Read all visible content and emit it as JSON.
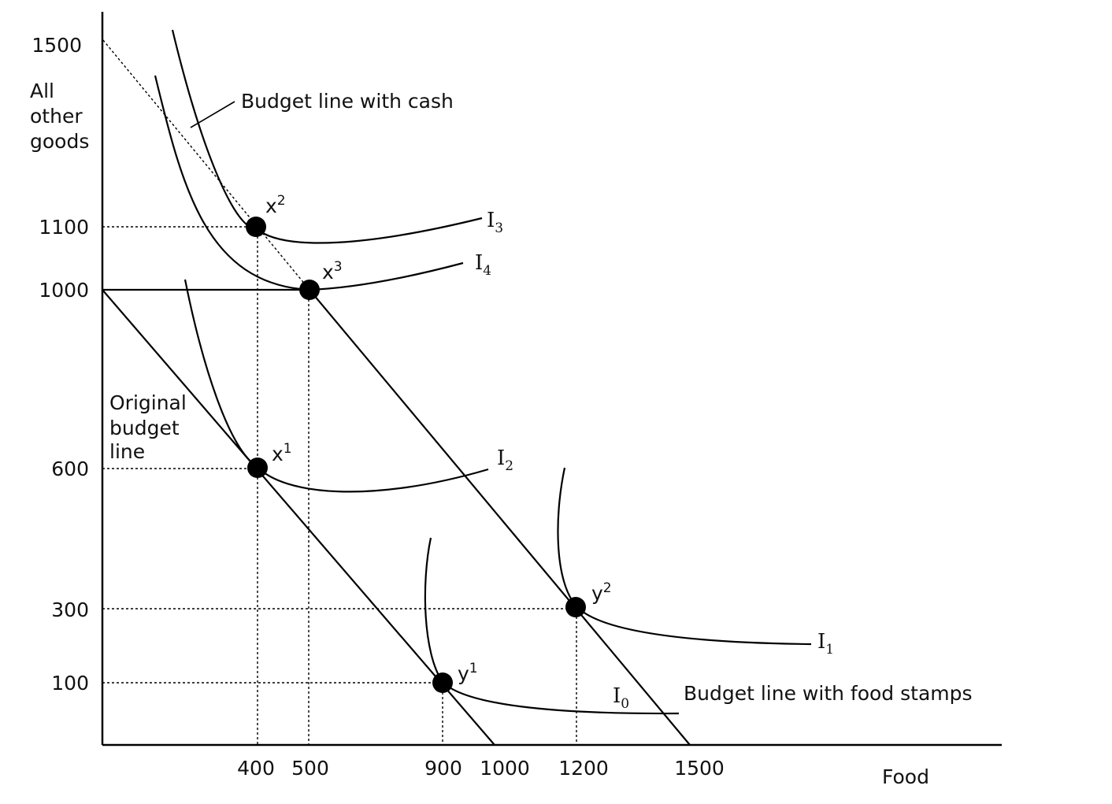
{
  "chart_data": {
    "type": "line",
    "axes": {
      "x_label": "Food",
      "y_label": [
        "All",
        "other",
        "goods"
      ],
      "x_ticks": [
        "400",
        "500",
        "900",
        "1000",
        "1200",
        "1500"
      ],
      "y_ticks": [
        "1500",
        "1100",
        "1000",
        "600",
        "300",
        "100"
      ]
    },
    "budget_lines": [
      {
        "name": "Original budget line",
        "label_lines": [
          "Original",
          "budget",
          "line"
        ],
        "points": [
          [
            0,
            1000
          ],
          [
            1000,
            0
          ]
        ]
      },
      {
        "name": "Budget line with food stamps",
        "label": "Budget line with food stamps",
        "points": [
          [
            0,
            1000
          ],
          [
            500,
            1000
          ],
          [
            1500,
            0
          ]
        ]
      },
      {
        "name": "Budget line with cash",
        "label": "Budget line with cash",
        "points": [
          [
            0,
            1500
          ],
          [
            500,
            1000
          ]
        ]
      }
    ],
    "indifference_curves": [
      {
        "name": "I0",
        "label_base": "I",
        "label_sub": "0"
      },
      {
        "name": "I1",
        "label_base": "I",
        "label_sub": "1"
      },
      {
        "name": "I2",
        "label_base": "I",
        "label_sub": "2"
      },
      {
        "name": "I3",
        "label_base": "I",
        "label_sub": "3"
      },
      {
        "name": "I4",
        "label_base": "I",
        "label_sub": "4"
      }
    ],
    "points": [
      {
        "name": "x1",
        "base": "x",
        "sup": "1",
        "food": 400,
        "other": 600
      },
      {
        "name": "x2",
        "base": "x",
        "sup": "2",
        "food": 400,
        "other": 1100
      },
      {
        "name": "x3",
        "base": "x",
        "sup": "3",
        "food": 500,
        "other": 1000
      },
      {
        "name": "y1",
        "base": "y",
        "sup": "1",
        "food": 900,
        "other": 100
      },
      {
        "name": "y2",
        "base": "y",
        "sup": "2",
        "food": 1200,
        "other": 300
      }
    ]
  }
}
